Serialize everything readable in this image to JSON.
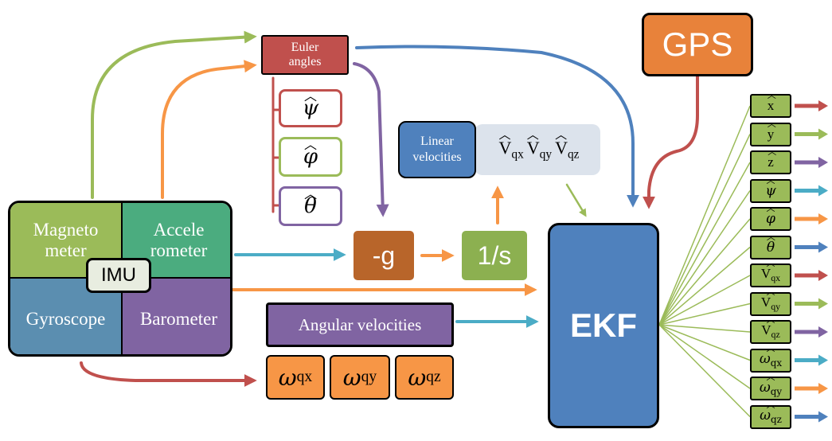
{
  "imu": {
    "magnetometer": "Magneto meter",
    "accelerometer": "Accele rometer",
    "gyroscope": "Gyroscope",
    "barometer": "Barometer",
    "center": "IMU"
  },
  "euler": {
    "title": "Euler angles",
    "angles": [
      "ψ",
      "φ",
      "θ"
    ]
  },
  "linear": {
    "title": "Linear velocities",
    "components": [
      {
        "base": "V",
        "sub": "qx"
      },
      {
        "base": "V",
        "sub": "qy"
      },
      {
        "base": "V",
        "sub": "qz"
      }
    ]
  },
  "gravity": "-g",
  "integrator": "1/s",
  "gps": "GPS",
  "ekf": "EKF",
  "angular": {
    "title": "Angular velocities",
    "components": [
      {
        "base": "ω",
        "sub": "qx"
      },
      {
        "base": "ω",
        "sub": "qy"
      },
      {
        "base": "ω",
        "sub": "qz"
      }
    ]
  },
  "outputs": [
    {
      "base": "x",
      "sub": ""
    },
    {
      "base": "y",
      "sub": ""
    },
    {
      "base": "z",
      "sub": ""
    },
    {
      "base": "ψ",
      "sub": ""
    },
    {
      "base": "φ",
      "sub": ""
    },
    {
      "base": "θ",
      "sub": ""
    },
    {
      "base": "V",
      "sub": "qx"
    },
    {
      "base": "V",
      "sub": "qy"
    },
    {
      "base": "V",
      "sub": "qz"
    },
    {
      "base": "ω",
      "sub": "qx"
    },
    {
      "base": "ω",
      "sub": "qy"
    },
    {
      "base": "ω",
      "sub": "qz"
    }
  ],
  "colors": {
    "magnetometer": "#9bbb59",
    "accelerometer": "#4bac7f",
    "gyroscope": "#5b8eb0",
    "barometer": "#8064a2",
    "euler": "#c0504d",
    "linear": "#4f81bd",
    "gravity": "#b8652a",
    "integrator": "#8cb050",
    "gps": "#e8823a",
    "ekf": "#4f81bd",
    "angular": "#8064a2",
    "omega": "#f79646",
    "output": "#9bbb59",
    "output_arrows": [
      "#c0504d",
      "#9bbb59",
      "#8064a2",
      "#4bacc6",
      "#f79646",
      "#4f81bd",
      "#c0504d",
      "#9bbb59",
      "#8064a2",
      "#4bacc6",
      "#f79646",
      "#4f81bd"
    ]
  }
}
